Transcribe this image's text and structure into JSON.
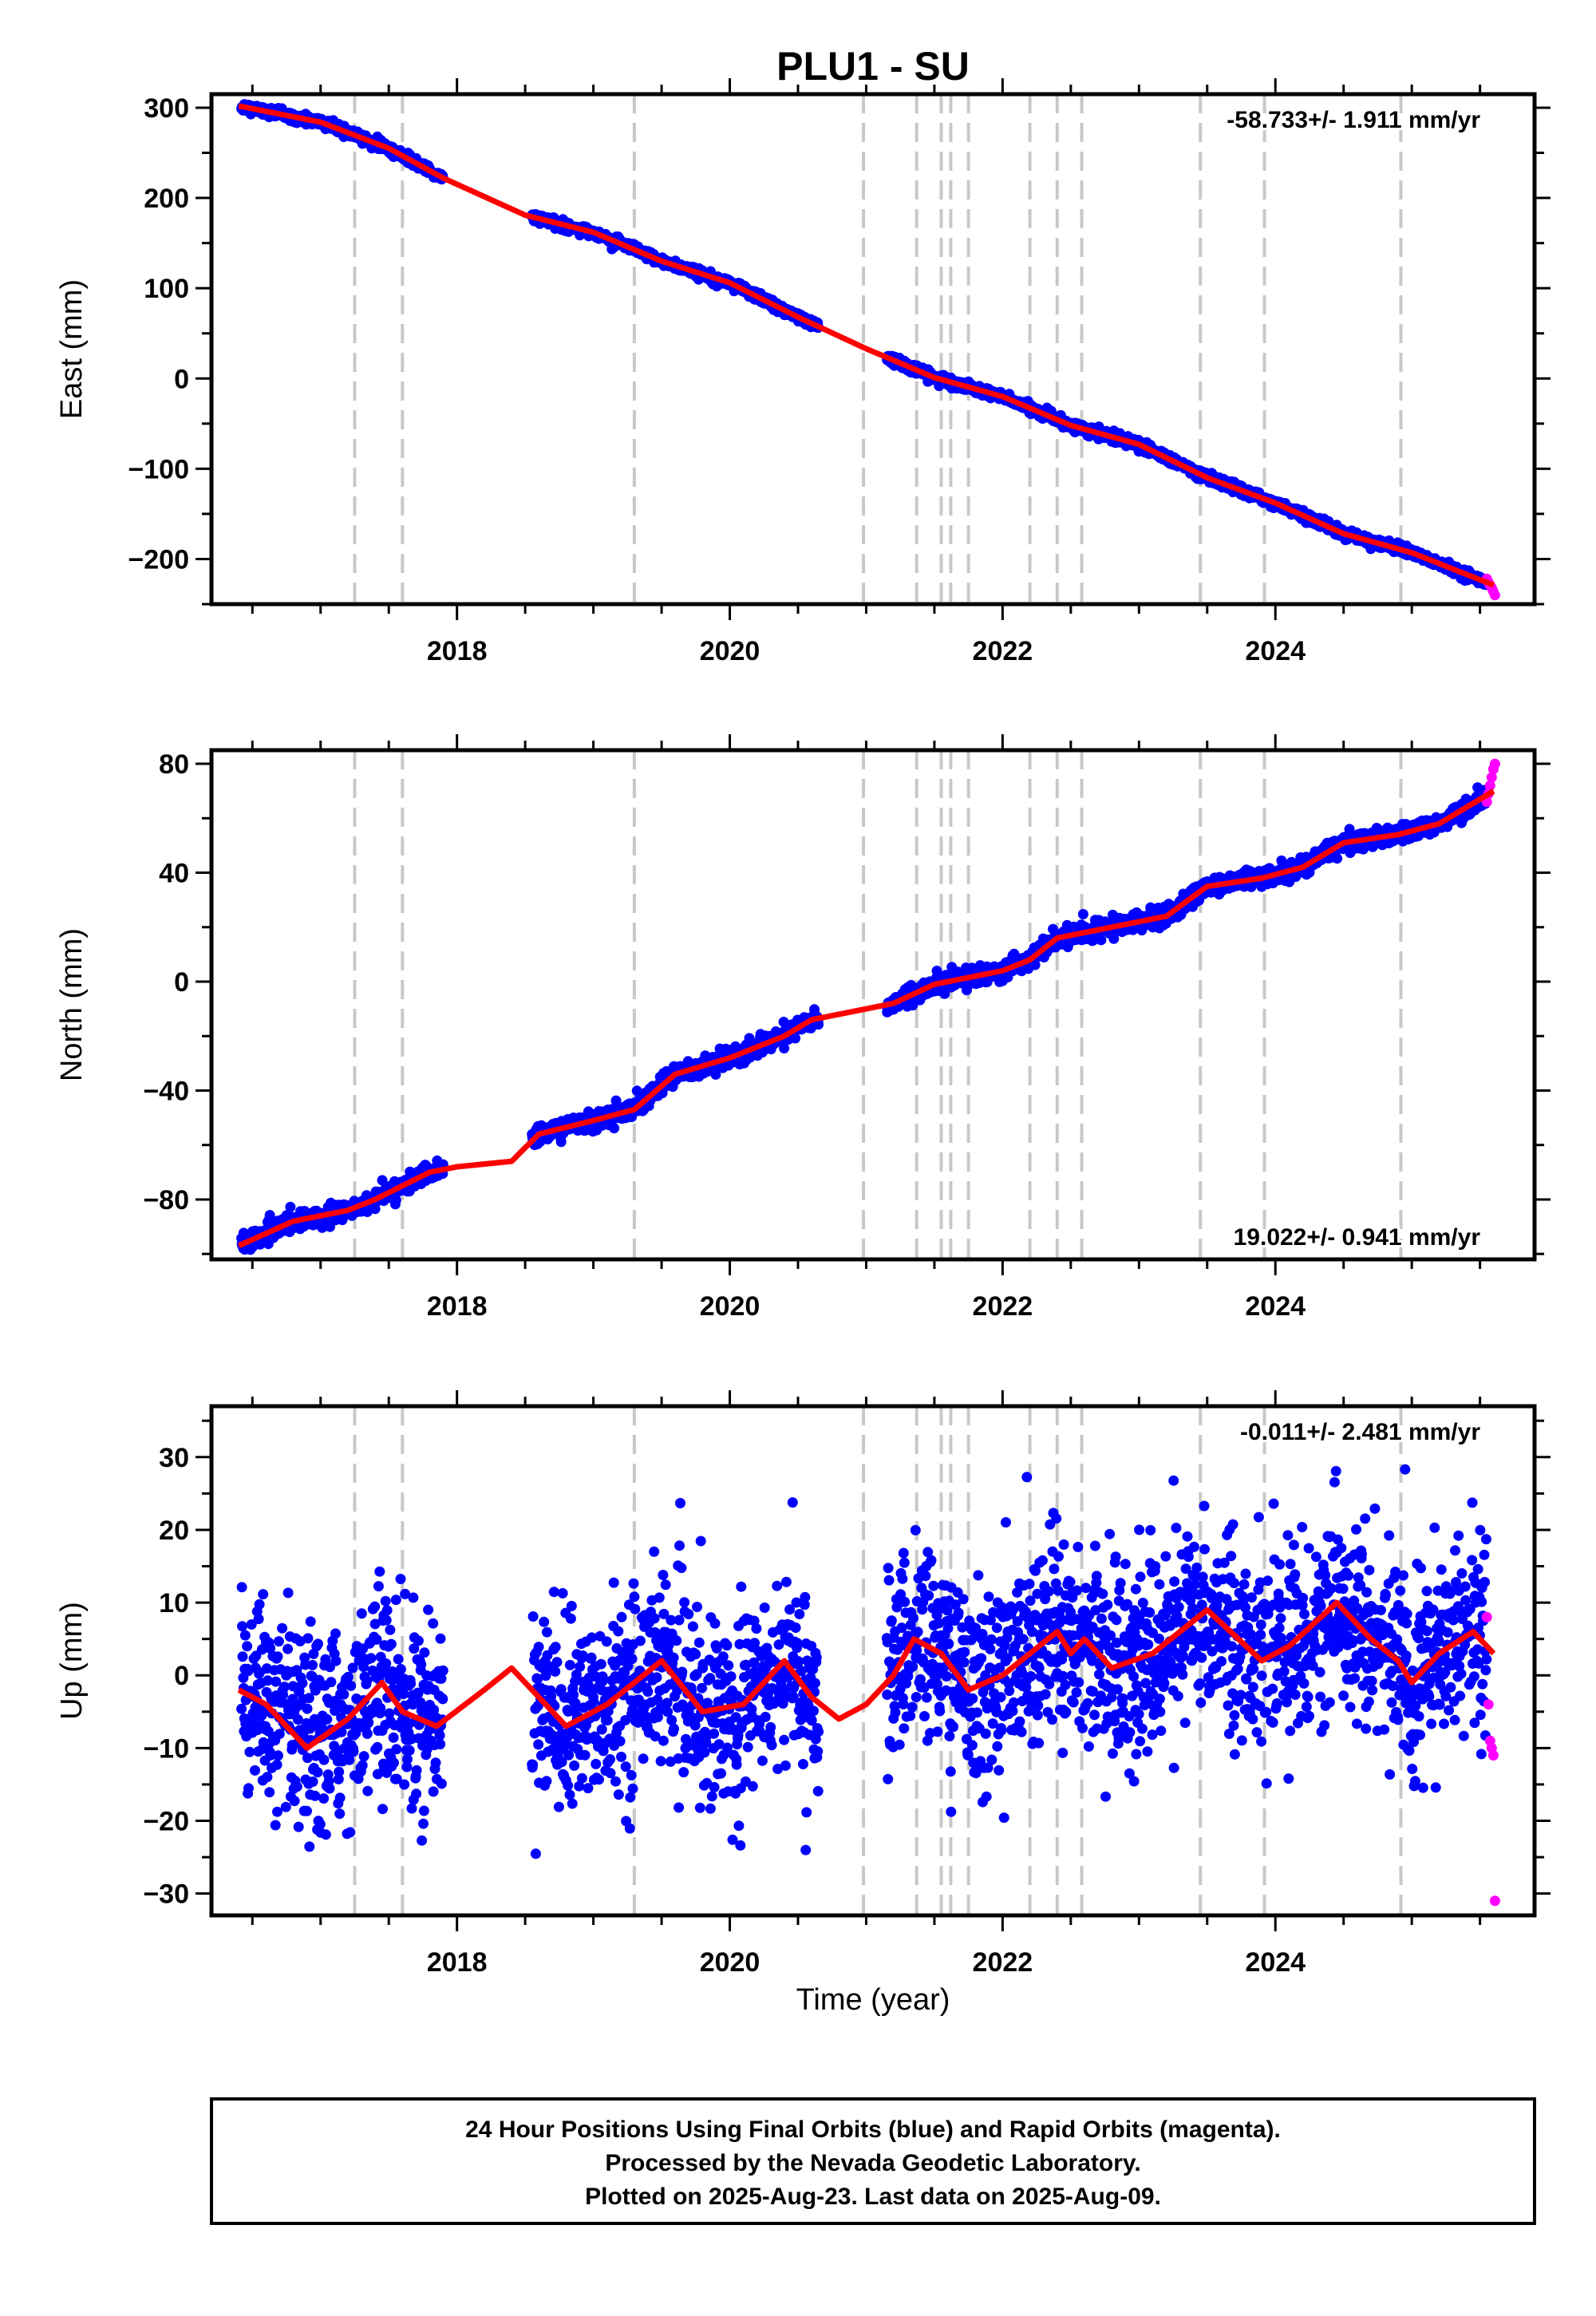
{
  "chart_data": {
    "title": "PLU1 - SU",
    "type": "scatter",
    "x_label": "Time (year)",
    "x_range": [
      2016.2,
      2025.9
    ],
    "x_ticks": [
      2018,
      2020,
      2022,
      2024
    ],
    "x_tick_labels": [
      "2018",
      "2020",
      "2022",
      "2024"
    ],
    "x_minor_step": 0.5,
    "steps": [
      2017.25,
      2017.6,
      2019.3,
      2020.98,
      2021.37,
      2021.55,
      2021.62,
      2021.75,
      2022.2,
      2022.4,
      2022.58,
      2023.45,
      2023.92,
      2024.92
    ],
    "rapid_start": 2025.55,
    "data_end": 2025.61,
    "gaps": [
      [
        2017.9,
        2018.55
      ],
      [
        2020.65,
        2021.15
      ]
    ],
    "colors": {
      "final_orbits": "#0000ff",
      "rapid_orbits": "#ff00ff",
      "model": "#ff0000",
      "steps": "#c8c8c8"
    },
    "panels": [
      {
        "ylabel": "East (mm)",
        "ylim": [
          -250,
          315
        ],
        "yticks": [
          300,
          200,
          100,
          0,
          -100,
          -200
        ],
        "ytick_labels": [
          "300",
          "200",
          "100",
          "0",
          "−100",
          "−200"
        ],
        "y_minor_step": 50,
        "rate": "-58.733+/- 1.911 mm/yr",
        "rate_position": "top-right",
        "noise": 2.5,
        "model_x": [
          2016.4,
          2017.0,
          2017.5,
          2017.9,
          2018.5,
          2019.0,
          2019.5,
          2020.0,
          2020.5,
          2021.0,
          2021.5,
          2022.0,
          2022.5,
          2023.0,
          2023.5,
          2024.0,
          2024.5,
          2025.0,
          2025.6
        ],
        "model_y": [
          302,
          284,
          255,
          222,
          181,
          162,
          130,
          106,
          68,
          33,
          1,
          -20,
          -52,
          -73,
          -110,
          -138,
          -172,
          -193,
          -229
        ],
        "rapid_y": [
          -222,
          -226,
          -229,
          -232,
          -236,
          -240
        ]
      },
      {
        "ylabel": "North (mm)",
        "ylim": [
          -102,
          85
        ],
        "yticks": [
          80,
          40,
          0,
          -40,
          -80
        ],
        "ytick_labels": [
          "80",
          "40",
          "0",
          "−40",
          "−80"
        ],
        "y_minor_step": 20,
        "rate": "19.022+/- 0.941 mm/yr",
        "rate_position": "bottom-right",
        "noise": 1.6,
        "model_x": [
          2016.4,
          2016.8,
          2017.2,
          2017.4,
          2017.8,
          2018.0,
          2018.4,
          2018.6,
          2019.0,
          2019.3,
          2019.6,
          2020.0,
          2020.4,
          2020.6,
          2021.0,
          2021.2,
          2021.5,
          2021.8,
          2022.0,
          2022.2,
          2022.4,
          2022.8,
          2023.2,
          2023.5,
          2023.9,
          2024.2,
          2024.5,
          2024.9,
          2025.2,
          2025.6
        ],
        "model_y": [
          -97,
          -88,
          -84,
          -80,
          -70,
          -68,
          -66,
          -56,
          -51,
          -47,
          -34,
          -28,
          -20,
          -14,
          -10,
          -8,
          -1,
          2,
          4,
          8,
          16,
          20,
          24,
          35,
          38,
          42,
          51,
          54,
          58,
          70
        ],
        "rapid_y": [
          66,
          69,
          72,
          75,
          78,
          80
        ]
      },
      {
        "ylabel": "Up (mm)",
        "ylim": [
          -33,
          37
        ],
        "yticks": [
          30,
          20,
          10,
          0,
          -10,
          -20,
          -30
        ],
        "ytick_labels": [
          "30",
          "20",
          "10",
          "0",
          "−10",
          "−20",
          "−30"
        ],
        "y_minor_step": 5,
        "rate": "-0.011+/- 2.481 mm/yr",
        "rate_position": "top-right",
        "noise": 6.5,
        "model_x": [
          2016.4,
          2016.6,
          2016.9,
          2017.2,
          2017.45,
          2017.6,
          2017.85,
          2018.2,
          2018.4,
          2018.55,
          2018.8,
          2019.1,
          2019.5,
          2019.8,
          2020.1,
          2020.4,
          2020.6,
          2020.8,
          2021.0,
          2021.2,
          2021.35,
          2021.55,
          2021.75,
          2022.0,
          2022.2,
          2022.4,
          2022.5,
          2022.6,
          2022.8,
          2023.1,
          2023.5,
          2023.9,
          2024.1,
          2024.45,
          2024.7,
          2024.9,
          2025.0,
          2025.2,
          2025.45,
          2025.6
        ],
        "model_y": [
          -2,
          -4,
          -10,
          -6,
          -1,
          -5,
          -7,
          -2,
          1,
          -2,
          -7,
          -4,
          2,
          -5,
          -4,
          2,
          -3,
          -6,
          -4,
          0,
          5,
          3,
          -2,
          0,
          3,
          6,
          3,
          5,
          1,
          3,
          9,
          2,
          4,
          10,
          5,
          2,
          -1,
          3,
          6,
          3
        ],
        "rapid_y": [
          8,
          -4,
          -9,
          -10,
          -11,
          -31
        ]
      }
    ],
    "footer_lines": [
      "24 Hour Positions Using Final Orbits (blue) and Rapid Orbits (magenta).",
      "Processed by the Nevada Geodetic Laboratory.",
      "Plotted on 2025-Aug-23. Last data on 2025-Aug-09."
    ]
  }
}
